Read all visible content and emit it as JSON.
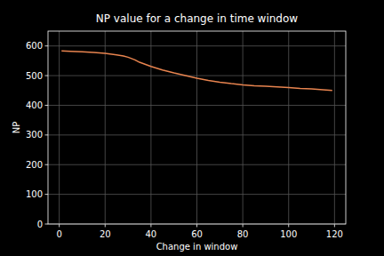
{
  "chart_data": {
    "type": "line",
    "title": "NP value for a change in time window",
    "x_label": "Change in window",
    "y_label": "NP",
    "x": [
      1,
      5,
      10,
      15,
      20,
      25,
      28,
      30,
      33,
      35,
      40,
      45,
      50,
      55,
      60,
      65,
      70,
      75,
      80,
      85,
      90,
      95,
      100,
      105,
      110,
      115,
      119
    ],
    "series": [
      {
        "name": "NP",
        "color": "#e8844f",
        "values": [
          583,
          582,
          580,
          578,
          575,
          570,
          566,
          562,
          553,
          545,
          531,
          519,
          509,
          500,
          491,
          484,
          478,
          473,
          469,
          466,
          464,
          462,
          460,
          457,
          455,
          452,
          450
        ]
      }
    ],
    "xlim": [
      -4.9,
      124.9
    ],
    "ylim": [
      0,
      650
    ],
    "xticks": [
      0,
      20,
      40,
      60,
      80,
      100,
      120
    ],
    "yticks": [
      0,
      100,
      200,
      300,
      400,
      500,
      600
    ],
    "grid": true
  }
}
